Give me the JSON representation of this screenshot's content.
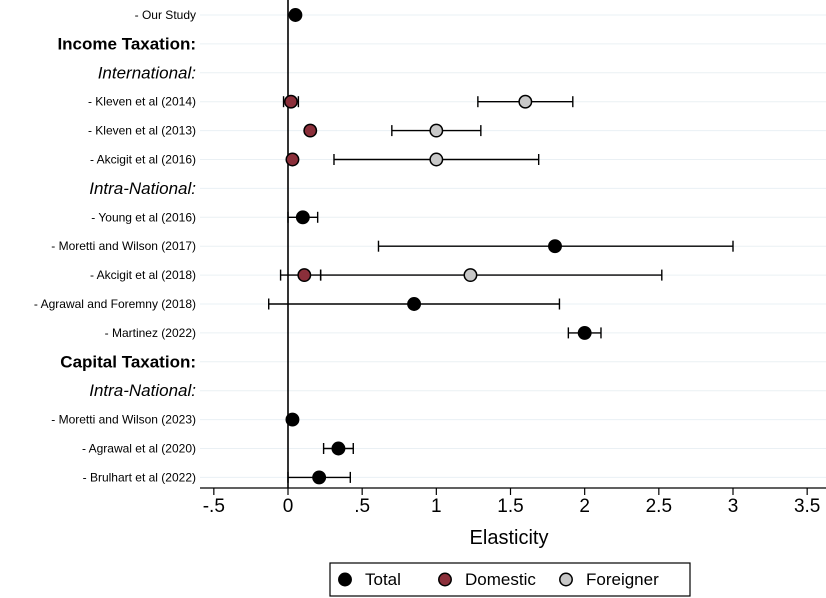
{
  "chart_data": {
    "type": "scatter",
    "subtype": "forest-plot",
    "orientation": "horizontal",
    "xlabel": "Elasticity",
    "ylabel": "",
    "xlim": [
      -0.55,
      3.6
    ],
    "xticks": [
      -0.5,
      0,
      0.5,
      1,
      1.5,
      2,
      2.5,
      3,
      3.5
    ],
    "xtick_labels": [
      "-.5",
      "0",
      ".5",
      "1",
      "1.5",
      "2",
      "2.5",
      "3",
      "3.5"
    ],
    "reference_line_x": 0,
    "grid": "horizontal",
    "legend": {
      "position": "bottom",
      "entries": [
        {
          "key": "total",
          "label": "Total"
        },
        {
          "key": "domestic",
          "label": "Domestic"
        },
        {
          "key": "foreigner",
          "label": "Foreigner"
        }
      ]
    },
    "colors": {
      "total": "#000000",
      "domestic": "#8b2f3a",
      "foreigner": "#c8c8c8",
      "grid": "#eaf0f4",
      "axis": "#000000"
    },
    "rows": [
      {
        "label": "- Our Study",
        "style": "study",
        "points": [
          {
            "series": "total",
            "value": 0.05
          }
        ]
      },
      {
        "label": "Income Taxation:",
        "style": "header-bold",
        "points": []
      },
      {
        "label": "International:",
        "style": "header-italic",
        "points": []
      },
      {
        "label": "- Kleven et al (2014)",
        "style": "study",
        "points": [
          {
            "series": "domestic",
            "value": 0.02,
            "ci": [
              -0.03,
              0.07
            ]
          },
          {
            "series": "foreigner",
            "value": 1.6,
            "ci": [
              1.28,
              1.92
            ]
          }
        ]
      },
      {
        "label": "- Kleven et al (2013)",
        "style": "study",
        "points": [
          {
            "series": "domestic",
            "value": 0.15
          },
          {
            "series": "foreigner",
            "value": 1.0,
            "ci": [
              0.7,
              1.3
            ]
          }
        ]
      },
      {
        "label": "- Akcigit et al (2016)",
        "style": "study",
        "points": [
          {
            "series": "domestic",
            "value": 0.03
          },
          {
            "series": "foreigner",
            "value": 1.0,
            "ci": [
              0.31,
              1.69
            ]
          }
        ]
      },
      {
        "label": "Intra-National:",
        "style": "header-italic",
        "points": []
      },
      {
        "label": "- Young et al (2016)",
        "style": "study",
        "points": [
          {
            "series": "total",
            "value": 0.1,
            "ci": [
              0.0,
              0.2
            ]
          }
        ]
      },
      {
        "label": "- Moretti and Wilson (2017)",
        "style": "study",
        "points": [
          {
            "series": "total",
            "value": 1.8,
            "ci": [
              0.61,
              3.0
            ]
          }
        ]
      },
      {
        "label": "- Akcigit et al (2018)",
        "style": "study",
        "points": [
          {
            "series": "domestic",
            "value": 0.11,
            "ci": [
              -0.05,
              0.22
            ]
          },
          {
            "series": "foreigner",
            "value": 1.23,
            "ci": [
              0.22,
              2.52
            ]
          }
        ]
      },
      {
        "label": "- Agrawal and Foremny (2018)",
        "style": "study",
        "points": [
          {
            "series": "total",
            "value": 0.85,
            "ci": [
              -0.13,
              1.83
            ]
          }
        ]
      },
      {
        "label": "- Martinez (2022)",
        "style": "study",
        "points": [
          {
            "series": "total",
            "value": 2.0,
            "ci": [
              1.89,
              2.11
            ]
          }
        ]
      },
      {
        "label": "Capital Taxation:",
        "style": "header-bold",
        "points": []
      },
      {
        "label": "Intra-National:",
        "style": "header-italic",
        "points": []
      },
      {
        "label": "- Moretti and Wilson (2023)",
        "style": "study",
        "points": [
          {
            "series": "total",
            "value": 0.03
          }
        ]
      },
      {
        "label": "- Agrawal et al (2020)",
        "style": "study",
        "points": [
          {
            "series": "total",
            "value": 0.34,
            "ci": [
              0.24,
              0.44
            ]
          }
        ]
      },
      {
        "label": "- Brulhart et al (2022)",
        "style": "study",
        "points": [
          {
            "series": "total",
            "value": 0.21,
            "ci": [
              0.0,
              0.42
            ]
          }
        ]
      }
    ]
  }
}
